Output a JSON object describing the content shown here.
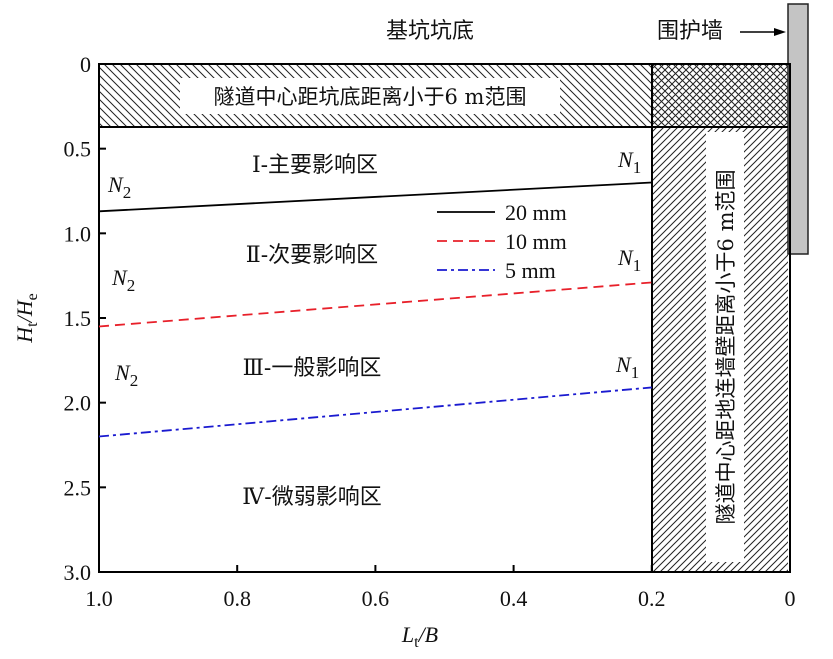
{
  "chart_data": {
    "type": "line",
    "title": "基坑坑底",
    "xlabel": "Lt/B",
    "xlabel_main": "L",
    "xlabel_sub": "t",
    "xlabel_rest": "/B",
    "ylabel_main": "H",
    "ylabel_sub": "t",
    "ylabel_mid": "/H",
    "ylabel_sub2": "e",
    "xlim": [
      1.0,
      0
    ],
    "ylim": [
      0,
      3.0
    ],
    "xticks": [
      "1.0",
      "0.8",
      "0.6",
      "0.4",
      "0.2",
      "0"
    ],
    "xtick_values": [
      1.0,
      0.8,
      0.6,
      0.4,
      0.2,
      0
    ],
    "yticks": [
      "0",
      "0.5",
      "1.0",
      "1.5",
      "2.0",
      "2.5",
      "3.0"
    ],
    "ytick_values": [
      0,
      0.5,
      1.0,
      1.5,
      2.0,
      2.5,
      3.0
    ],
    "series": [
      {
        "name": "20 mm",
        "color": "#000000",
        "dash": "solid",
        "x": [
          1.0,
          0.2
        ],
        "y": [
          0.87,
          0.7
        ]
      },
      {
        "name": "10 mm",
        "color": "#e8202a",
        "dash": "dashed",
        "x": [
          1.0,
          0.2
        ],
        "y": [
          1.55,
          1.29
        ]
      },
      {
        "name": "5 mm",
        "color": "#1a1ad0",
        "dash": "dashdot",
        "x": [
          1.0,
          0.2
        ],
        "y": [
          2.2,
          1.91
        ]
      }
    ],
    "regions": {
      "top_band": {
        "label": "隧道中心距坑底距离小于6 m范围",
        "y_range": [
          0,
          0.37
        ]
      },
      "wall_band": {
        "label": "隧道中心距地连墙壁距离小于6 m范围",
        "x_range": [
          0.2,
          0
        ]
      },
      "wall_label": "围护墙"
    },
    "zones": [
      "Ⅰ-主要影响区",
      "Ⅱ-次要影响区",
      "Ⅲ-一般影响区",
      "Ⅳ-微弱影响区"
    ],
    "point_labels": {
      "n1": "N",
      "n1_sub": "1",
      "n2": "N",
      "n2_sub": "2"
    },
    "legend_position": "center"
  }
}
